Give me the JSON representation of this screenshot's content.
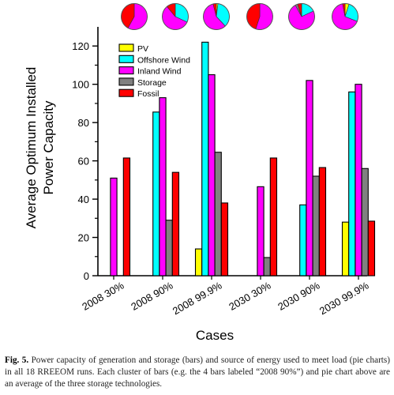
{
  "chart_data": {
    "type": "bar",
    "categories": [
      "2008 30%",
      "2008 90%",
      "2008 99.9%",
      "2030 30%",
      "2030 90%",
      "2030 99.9%"
    ],
    "series": [
      {
        "name": "PV",
        "color": "#ffff00",
        "values": [
          0,
          0,
          14,
          0,
          0,
          28
        ]
      },
      {
        "name": "Offshore Wind",
        "color": "#00ffff",
        "values": [
          0,
          85.5,
          122,
          0,
          37,
          96
        ]
      },
      {
        "name": "Inland Wind",
        "color": "#ff00ff",
        "values": [
          51,
          93,
          105,
          46.5,
          102,
          100
        ]
      },
      {
        "name": "Storage",
        "color": "#808080",
        "values": [
          0,
          29,
          64.5,
          9.5,
          52,
          56
        ]
      },
      {
        "name": "Fossil",
        "color": "#ff0000",
        "values": [
          61.5,
          54,
          38,
          61.5,
          56.5,
          28.5
        ]
      }
    ],
    "pie_charts": [
      {
        "category": "2008 30%",
        "shares": [
          0,
          0,
          0.58,
          0,
          0.42
        ]
      },
      {
        "category": "2008 90%",
        "shares": [
          0,
          0.32,
          0.57,
          0,
          0.11
        ]
      },
      {
        "category": "2008 99.9%",
        "shares": [
          0.02,
          0.36,
          0.58,
          0,
          0.04
        ]
      },
      {
        "category": "2030 30%",
        "shares": [
          0,
          0,
          0.55,
          0,
          0.45
        ]
      },
      {
        "category": "2030 90%",
        "shares": [
          0,
          0.18,
          0.74,
          0.03,
          0.05
        ]
      },
      {
        "category": "2030 99.9%",
        "shares": [
          0.05,
          0.26,
          0.66,
          0,
          0.03
        ]
      }
    ],
    "xlabel": "Cases",
    "ylabel": [
      "Average Optimum Installed",
      "Power Capacity"
    ],
    "ylim": [
      0,
      130
    ],
    "yticks": [
      "0",
      "20",
      "40",
      "60",
      "80",
      "100",
      "120"
    ],
    "legend_position": "top-left",
    "grid": false
  },
  "caption": {
    "label": "Fig. 5.",
    "text": "Power capacity of generation and storage (bars) and source of energy used to meet load (pie charts) in all 18 RREEOM runs. Each cluster of bars (e.g. the 4 bars labeled “2008 90%”) and pie chart above are an average of the three storage technologies."
  }
}
